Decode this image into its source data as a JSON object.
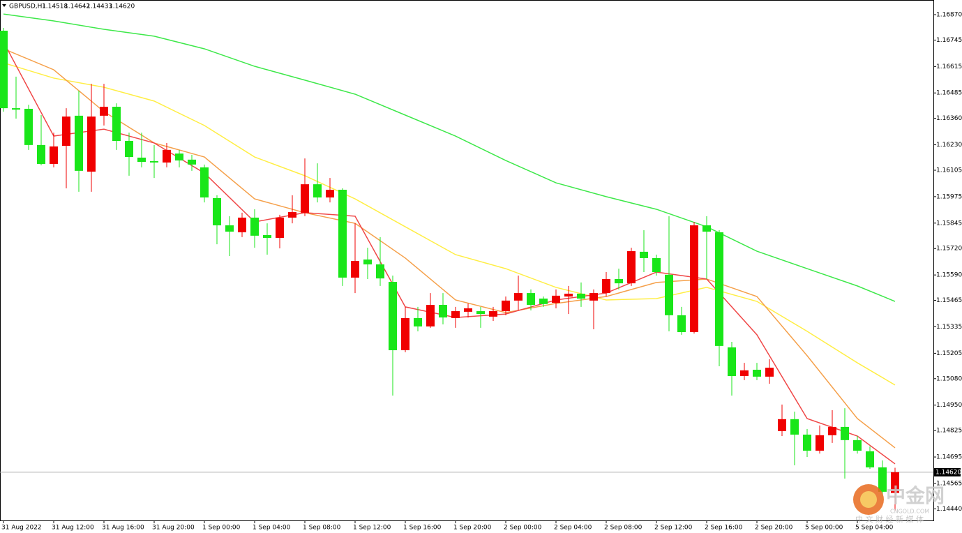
{
  "chart_data": {
    "type": "candlestick",
    "header": {
      "symbol": "GBPUSD,H1",
      "ohlc": [
        "1.14518",
        "1.14642",
        "1.14433",
        "1.14620"
      ]
    },
    "categories": [
      "31 Aug 2022",
      null,
      null,
      null,
      "31 Aug 12:00",
      null,
      null,
      null,
      "31 Aug 16:00",
      null,
      null,
      null,
      "31 Aug 20:00",
      null,
      null,
      null,
      "1 Sep 00:00",
      null,
      null,
      null,
      "1 Sep 04:00",
      null,
      null,
      null,
      "1 Sep 08:00",
      null,
      null,
      null,
      "1 Sep 12:00",
      null,
      null,
      null,
      "1 Sep 16:00",
      null,
      null,
      null,
      "1 Sep 20:00",
      null,
      null,
      null,
      "2 Sep 00:00",
      null,
      null,
      null,
      "2 Sep 04:00",
      null,
      null,
      null,
      "2 Sep 08:00",
      null,
      null,
      null,
      "2 Sep 12:00",
      null,
      null,
      null,
      "2 Sep 16:00",
      null,
      null,
      null,
      "2 Sep 20:00",
      null,
      null,
      null,
      "5 Sep 00:00",
      null,
      null,
      null,
      "5 Sep 04:00",
      null,
      null,
      null
    ],
    "open": [
      1.16791,
      1.1641,
      1.16407,
      1.16229,
      1.16136,
      1.16225,
      1.16373,
      1.16098,
      1.16373,
      1.16417,
      1.16249,
      1.16167,
      1.1615,
      1.16143,
      1.16187,
      1.16157,
      1.16119,
      1.15968,
      1.15834,
      1.158,
      1.15872,
      1.15786,
      1.15772,
      1.15872,
      1.15896,
      1.16036,
      1.15971,
      1.16009,
      1.15577,
      1.15666,
      1.15642,
      1.15556,
      1.1522,
      1.15378,
      1.15337,
      1.15443,
      1.15378,
      1.15409,
      1.15412,
      1.15385,
      1.15412,
      1.15464,
      1.15501,
      1.15474,
      1.15453,
      1.15484,
      1.15498,
      1.15464,
      1.15501,
      1.1557,
      1.15549,
      1.15704,
      1.15673,
      1.15591,
      1.15392,
      1.15309,
      1.15834,
      1.158,
      1.15234,
      1.15093,
      1.15124,
      1.1509,
      1.14822,
      1.14881,
      1.14805,
      1.14726,
      1.14802,
      1.14843,
      1.14778,
      1.14723,
      1.14644,
      1.14518
    ],
    "high": [
      1.16805,
      1.16565,
      1.16427,
      1.16376,
      1.1629,
      1.1641,
      1.16496,
      1.1653,
      1.1653,
      1.16434,
      1.1629,
      1.1629,
      1.16229,
      1.16239,
      1.16205,
      1.16181,
      1.16133,
      1.15982,
      1.15879,
      1.15896,
      1.15913,
      1.15844,
      1.15886,
      1.15982,
      1.16163,
      1.16139,
      1.16067,
      1.16016,
      1.15844,
      1.15724,
      1.15776,
      1.15587,
      1.15433,
      1.15433,
      1.15501,
      1.15501,
      1.15433,
      1.1545,
      1.15433,
      1.15433,
      1.15484,
      1.15587,
      1.15519,
      1.15484,
      1.15519,
      1.15536,
      1.15553,
      1.15519,
      1.15604,
      1.15621,
      1.15724,
      1.1581,
      1.1569,
      1.15879,
      1.15433,
      1.15851,
      1.15879,
      1.1581,
      1.15261,
      1.15158,
      1.15158,
      1.15176,
      1.14953,
      1.14918,
      1.14833,
      1.1485,
      1.14925,
      1.14935,
      1.14798,
      1.14747,
      1.14678,
      1.14642
    ],
    "low": [
      1.16393,
      1.16359,
      1.16205,
      1.16129,
      1.16119,
      1.16016,
      1.15999,
      1.15999,
      1.16325,
      1.16205,
      1.16078,
      1.16119,
      1.16067,
      1.16119,
      1.16119,
      1.16102,
      1.15947,
      1.15741,
      1.15683,
      1.15776,
      1.15724,
      1.1569,
      1.15721,
      1.15844,
      1.15879,
      1.15947,
      1.15947,
      1.15536,
      1.15501,
      1.1557,
      1.15536,
      1.14997,
      1.1521,
      1.15313,
      1.1533,
      1.15347,
      1.1533,
      1.15381,
      1.1533,
      1.15364,
      1.15392,
      1.15416,
      1.15416,
      1.15433,
      1.15426,
      1.15398,
      1.15433,
      1.15323,
      1.15484,
      1.15519,
      1.15536,
      1.15604,
      1.15587,
      1.15313,
      1.15296,
      1.15302,
      1.1557,
      1.15141,
      1.14997,
      1.15073,
      1.15073,
      1.15055,
      1.14798,
      1.14654,
      1.14695,
      1.14712,
      1.14764,
      1.14589,
      1.14712,
      1.14637,
      1.14507,
      1.14433
    ],
    "close": [
      1.1641,
      1.16403,
      1.16229,
      1.16136,
      1.16222,
      1.16369,
      1.16102,
      1.16369,
      1.16417,
      1.16249,
      1.1617,
      1.16146,
      1.16143,
      1.16205,
      1.16153,
      1.16133,
      1.15971,
      1.15834,
      1.15803,
      1.15872,
      1.15783,
      1.15772,
      1.15872,
      1.15899,
      1.16036,
      1.15971,
      1.16009,
      1.15577,
      1.15659,
      1.15642,
      1.15573,
      1.1522,
      1.15378,
      1.15337,
      1.15443,
      1.15381,
      1.15412,
      1.15426,
      1.15398,
      1.15412,
      1.15464,
      1.15501,
      1.15443,
      1.15447,
      1.15488,
      1.15498,
      1.15474,
      1.15501,
      1.1557,
      1.15549,
      1.15707,
      1.15673,
      1.15604,
      1.15392,
      1.15309,
      1.15834,
      1.15803,
      1.15241,
      1.15093,
      1.15121,
      1.1509,
      1.15134,
      1.14881,
      1.14805,
      1.14726,
      1.14802,
      1.14843,
      1.14778,
      1.14726,
      1.14644,
      1.14524,
      1.1462
    ],
    "up_color": "#f00000",
    "down_color": "#19e619",
    "series": [
      {
        "color": "#3ee84a",
        "x": [
          0,
          4,
          8,
          12,
          16,
          20,
          24,
          28,
          32,
          36,
          40,
          44,
          48,
          52,
          56,
          60,
          64,
          68,
          71
        ],
        "values": [
          1.16873,
          1.16839,
          1.16798,
          1.16764,
          1.16702,
          1.16616,
          1.16548,
          1.16479,
          1.16376,
          1.16273,
          1.16153,
          1.16043,
          1.15975,
          1.15913,
          1.15827,
          1.15707,
          1.15621,
          1.15536,
          1.1546
        ]
      },
      {
        "color": "#ffee44",
        "x": [
          0,
          4,
          8,
          12,
          16,
          20,
          24,
          28,
          32,
          36,
          40,
          44,
          48,
          52,
          56,
          60,
          64,
          68,
          71
        ],
        "values": [
          1.16633,
          1.16558,
          1.16513,
          1.16445,
          1.16325,
          1.1617,
          1.16078,
          1.15964,
          1.15827,
          1.1569,
          1.15621,
          1.15529,
          1.15467,
          1.15474,
          1.15529,
          1.1546,
          1.15313,
          1.15158,
          1.15049
        ]
      },
      {
        "color": "#f5a04a",
        "x": [
          0,
          4,
          8,
          12,
          16,
          20,
          24,
          28,
          32,
          36,
          40,
          44,
          48,
          52,
          56,
          60,
          64,
          68,
          71
        ],
        "values": [
          1.16702,
          1.16599,
          1.16393,
          1.16239,
          1.1617,
          1.15964,
          1.15896,
          1.15844,
          1.15673,
          1.15467,
          1.15405,
          1.1545,
          1.15484,
          1.15553,
          1.1557,
          1.15484,
          1.15193,
          1.14884,
          1.1474
        ]
      },
      {
        "color": "#f04848",
        "x": [
          0,
          4,
          8,
          12,
          16,
          20,
          24,
          28,
          32,
          36,
          40,
          44,
          48,
          52,
          56,
          60,
          64,
          68,
          71
        ],
        "values": [
          1.16736,
          1.16273,
          1.16307,
          1.16239,
          1.16091,
          1.15851,
          1.15896,
          1.15879,
          1.15433,
          1.15381,
          1.15398,
          1.15467,
          1.15501,
          1.15604,
          1.1557,
          1.15296,
          1.14884,
          1.14798,
          1.14661
        ]
      }
    ],
    "ylim": [
      1.14383,
      1.16942
    ],
    "yticks": [
      {
        "value": 1.1687,
        "label": "1.16870"
      },
      1.16745,
      1.16615,
      1.16485,
      {
        "value": 1.1636,
        "label": "1.16360"
      },
      {
        "value": 1.1623,
        "label": "1.16230"
      },
      1.16105,
      1.15975,
      1.15845,
      {
        "value": 1.1572,
        "label": "1.15720"
      },
      {
        "value": 1.1559,
        "label": "1.15590"
      },
      1.15465,
      1.15335,
      1.15205,
      {
        "value": 1.1508,
        "label": "1.15080"
      },
      {
        "value": 1.1495,
        "label": "1.14950"
      },
      1.14825,
      1.14695,
      1.14565,
      {
        "value": 1.1444,
        "label": "1.14440"
      }
    ],
    "price_line": {
      "value": 1.1462,
      "label": "1.14620"
    },
    "watermark": {
      "brand": "中金网",
      "site": "CNGOLD.COM",
      "tagline": "中 文 财 经 新 媒 体"
    }
  }
}
